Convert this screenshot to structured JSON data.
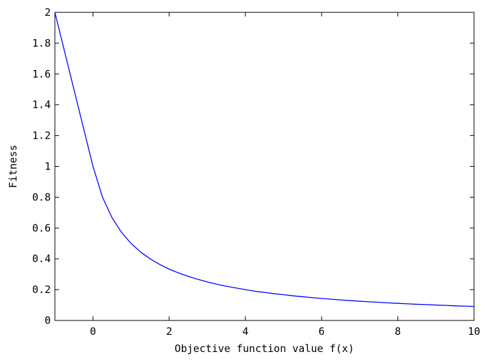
{
  "chart_data": {
    "type": "line",
    "title": "",
    "xlabel": "Objective function value f(x)",
    "ylabel": "Fitness",
    "xlim": [
      -1,
      10
    ],
    "ylim": [
      0,
      2
    ],
    "xticks": [
      0,
      2,
      4,
      6,
      8,
      10
    ],
    "yticks": [
      0,
      0.2,
      0.4,
      0.6,
      0.8,
      1,
      1.2,
      1.4,
      1.6,
      1.8,
      2
    ],
    "xtick_labels": [
      "0",
      "2",
      "4",
      "6",
      "8",
      "10"
    ],
    "ytick_labels": [
      "0",
      "0.2",
      "0.4",
      "0.6",
      "0.8",
      "1",
      "1.2",
      "1.4",
      "1.6",
      "1.8",
      "2"
    ],
    "grid": false,
    "legend": "none",
    "line_color": "#0000ff",
    "series": [
      {
        "x": [
          -1,
          -0.75,
          -0.5,
          -0.25,
          0,
          0.25,
          0.5,
          0.75,
          1,
          1.25,
          1.5,
          1.75,
          2,
          2.25,
          2.5,
          2.75,
          3,
          3.25,
          3.5,
          3.75,
          4,
          4.25,
          4.5,
          4.75,
          5,
          5.25,
          5.5,
          5.75,
          6,
          6.25,
          6.5,
          6.75,
          7,
          7.25,
          7.5,
          7.75,
          8,
          8.25,
          8.5,
          8.75,
          9,
          9.25,
          9.5,
          9.75,
          10
        ],
        "y": [
          2,
          1.75,
          1.5,
          1.25,
          1,
          0.8,
          0.667,
          0.571,
          0.5,
          0.444,
          0.4,
          0.364,
          0.333,
          0.308,
          0.286,
          0.267,
          0.25,
          0.235,
          0.222,
          0.211,
          0.2,
          0.19,
          0.182,
          0.174,
          0.167,
          0.16,
          0.154,
          0.148,
          0.143,
          0.138,
          0.133,
          0.129,
          0.125,
          0.121,
          0.118,
          0.114,
          0.111,
          0.108,
          0.105,
          0.103,
          0.1,
          0.098,
          0.095,
          0.093,
          0.091
        ]
      }
    ]
  }
}
